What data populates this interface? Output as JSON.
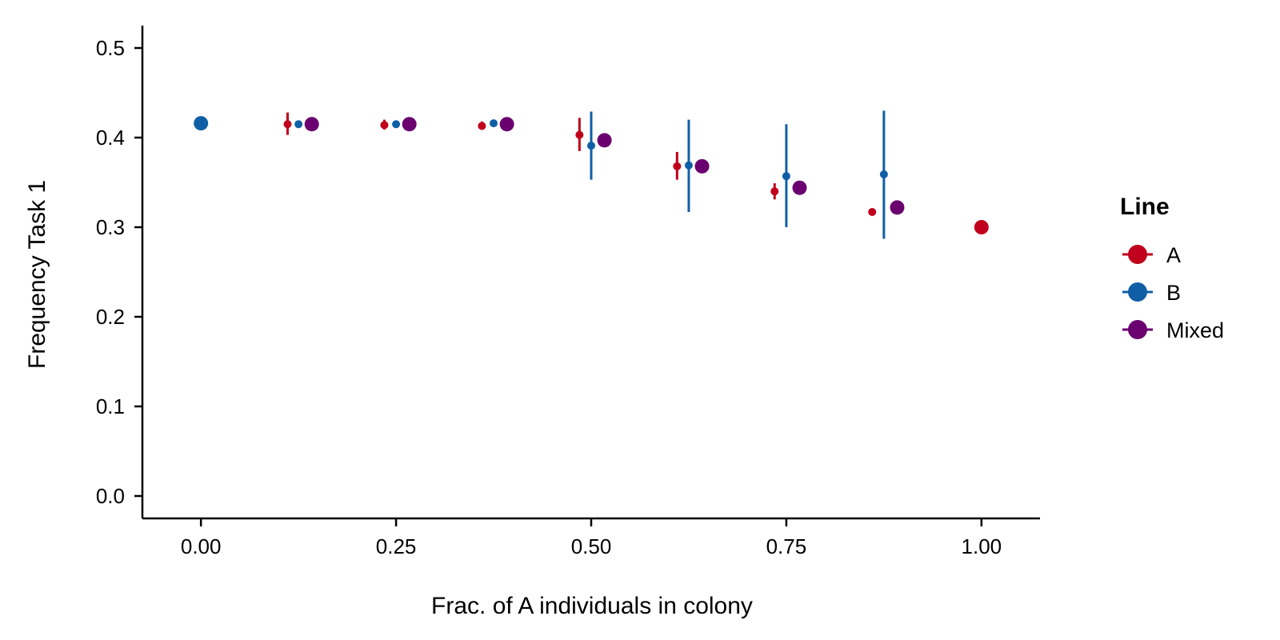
{
  "chart_data": {
    "type": "scatter",
    "xlabel": "Frac. of A individuals in colony",
    "ylabel": "Frequency Task 1",
    "xlim": [
      -0.075,
      1.075
    ],
    "ylim": [
      -0.025,
      0.525
    ],
    "x_ticks": [
      0.0,
      0.25,
      0.5,
      0.75,
      1.0
    ],
    "x_tick_labels": [
      "0.00",
      "0.25",
      "0.50",
      "0.75",
      "1.00"
    ],
    "y_ticks": [
      0.0,
      0.1,
      0.2,
      0.3,
      0.4,
      0.5
    ],
    "y_tick_labels": [
      "0.0",
      "0.1",
      "0.2",
      "0.3",
      "0.4",
      "0.5"
    ],
    "grid": false,
    "legend": {
      "title": "Line",
      "position": "right"
    },
    "series": [
      {
        "name": "A",
        "color": "#C0001C",
        "points": [
          {
            "x": 0.111,
            "y": 0.415,
            "ymin": 0.403,
            "ymax": 0.428,
            "size": "small"
          },
          {
            "x": 0.235,
            "y": 0.414,
            "ymin": 0.409,
            "ymax": 0.42,
            "size": "small"
          },
          {
            "x": 0.36,
            "y": 0.413,
            "ymin": 0.409,
            "ymax": 0.418,
            "size": "small"
          },
          {
            "x": 0.485,
            "y": 0.403,
            "ymin": 0.385,
            "ymax": 0.422,
            "size": "small"
          },
          {
            "x": 0.61,
            "y": 0.368,
            "ymin": 0.353,
            "ymax": 0.384,
            "size": "small"
          },
          {
            "x": 0.735,
            "y": 0.34,
            "ymin": 0.331,
            "ymax": 0.349,
            "size": "small"
          },
          {
            "x": 0.86,
            "y": 0.317,
            "ymin": 0.315,
            "ymax": 0.32,
            "size": "small"
          },
          {
            "x": 1.0,
            "y": 0.3,
            "size": "large"
          }
        ]
      },
      {
        "name": "B",
        "color": "#0F5FA6",
        "points": [
          {
            "x": 0.0,
            "y": 0.416,
            "size": "large"
          },
          {
            "x": 0.125,
            "y": 0.415,
            "ymin": 0.413,
            "ymax": 0.417,
            "size": "small"
          },
          {
            "x": 0.25,
            "y": 0.415,
            "ymin": 0.413,
            "ymax": 0.417,
            "size": "small"
          },
          {
            "x": 0.375,
            "y": 0.416,
            "ymin": 0.414,
            "ymax": 0.418,
            "size": "small"
          },
          {
            "x": 0.5,
            "y": 0.391,
            "ymin": 0.353,
            "ymax": 0.429,
            "size": "small"
          },
          {
            "x": 0.625,
            "y": 0.369,
            "ymin": 0.317,
            "ymax": 0.42,
            "size": "small"
          },
          {
            "x": 0.75,
            "y": 0.357,
            "ymin": 0.3,
            "ymax": 0.415,
            "size": "small"
          },
          {
            "x": 0.875,
            "y": 0.359,
            "ymin": 0.287,
            "ymax": 0.43,
            "size": "small"
          }
        ]
      },
      {
        "name": "Mixed",
        "color": "#6A006F",
        "points": [
          {
            "x": 0.142,
            "y": 0.415,
            "ymin": 0.412,
            "ymax": 0.418,
            "size": "large"
          },
          {
            "x": 0.267,
            "y": 0.415,
            "ymin": 0.412,
            "ymax": 0.418,
            "size": "large"
          },
          {
            "x": 0.392,
            "y": 0.415,
            "ymin": 0.412,
            "ymax": 0.418,
            "size": "large"
          },
          {
            "x": 0.517,
            "y": 0.397,
            "ymin": 0.392,
            "ymax": 0.403,
            "size": "large"
          },
          {
            "x": 0.642,
            "y": 0.368,
            "ymin": 0.362,
            "ymax": 0.375,
            "size": "large"
          },
          {
            "x": 0.767,
            "y": 0.344,
            "ymin": 0.341,
            "ymax": 0.347,
            "size": "large"
          },
          {
            "x": 0.892,
            "y": 0.322,
            "ymin": 0.319,
            "ymax": 0.325,
            "size": "large"
          }
        ]
      }
    ]
  }
}
